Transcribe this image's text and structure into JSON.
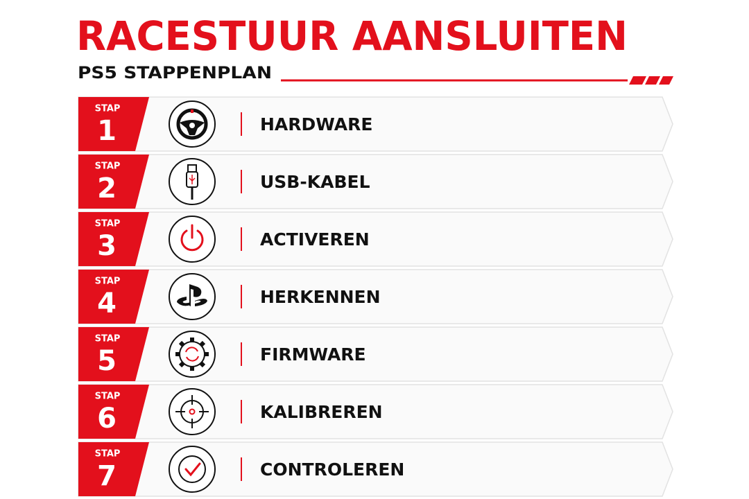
{
  "header": {
    "title": "RACESTUUR AANSLUITEN",
    "subtitle": "PS5 STAPPENPLAN"
  },
  "steps": [
    {
      "label": "STAP",
      "number": 1,
      "title": "HARDWARE"
    },
    {
      "label": "STAP",
      "number": 2,
      "title": "USB-KABEL"
    },
    {
      "label": "STAP",
      "number": 3,
      "title": "ACTIVEREN"
    },
    {
      "label": "STAP",
      "number": 4,
      "title": "HERKENNEN"
    },
    {
      "label": "STAP",
      "number": 5,
      "title": "FIRMWARE"
    },
    {
      "label": "STAP",
      "number": 6,
      "title": "KALIBREREN"
    },
    {
      "label": "STAP",
      "number": 7,
      "title": "CONTROLEREN"
    }
  ]
}
